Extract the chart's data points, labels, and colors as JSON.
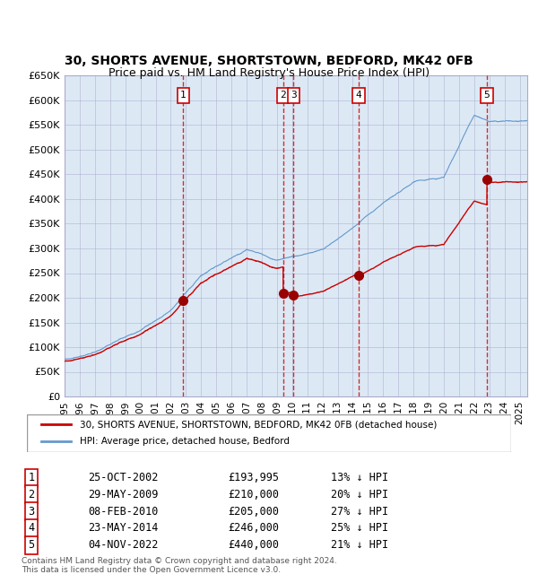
{
  "title": "30, SHORTS AVENUE, SHORTSTOWN, BEDFORD, MK42 0FB",
  "subtitle": "Price paid vs. HM Land Registry's House Price Index (HPI)",
  "ylabel_ticks": [
    "£0",
    "£50K",
    "£100K",
    "£150K",
    "£200K",
    "£250K",
    "£300K",
    "£350K",
    "£400K",
    "£450K",
    "£500K",
    "£550K",
    "£600K",
    "£650K"
  ],
  "ytick_values": [
    0,
    50000,
    100000,
    150000,
    200000,
    250000,
    300000,
    350000,
    400000,
    450000,
    500000,
    550000,
    600000,
    650000
  ],
  "ylim": [
    0,
    650000
  ],
  "xlim_start": 1995.0,
  "xlim_end": 2025.5,
  "background_color": "#dce9f5",
  "grid_color": "#aaaacc",
  "sale_points": [
    {
      "year": 2002.82,
      "value": 193995,
      "label": "1"
    },
    {
      "year": 2009.41,
      "value": 210000,
      "label": "2"
    },
    {
      "year": 2010.1,
      "value": 205000,
      "label": "3"
    },
    {
      "year": 2014.39,
      "value": 246000,
      "label": "4"
    },
    {
      "year": 2022.84,
      "value": 440000,
      "label": "5"
    }
  ],
  "sale_line_color": "#cc0000",
  "hpi_line_color": "#6699cc",
  "sale_dot_color": "#990000",
  "vline_color": "#cc0000",
  "legend_sale_label": "30, SHORTS AVENUE, SHORTSTOWN, BEDFORD, MK42 0FB (detached house)",
  "legend_hpi_label": "HPI: Average price, detached house, Bedford",
  "table_entries": [
    {
      "num": "1",
      "date": "25-OCT-2002",
      "price": "£193,995",
      "hpi": "13% ↓ HPI"
    },
    {
      "num": "2",
      "date": "29-MAY-2009",
      "price": "£210,000",
      "hpi": "20% ↓ HPI"
    },
    {
      "num": "3",
      "date": "08-FEB-2010",
      "price": "£205,000",
      "hpi": "27% ↓ HPI"
    },
    {
      "num": "4",
      "date": "23-MAY-2014",
      "price": "£246,000",
      "hpi": "25% ↓ HPI"
    },
    {
      "num": "5",
      "date": "04-NOV-2022",
      "price": "£440,000",
      "hpi": "21% ↓ HPI"
    }
  ],
  "footer_text": "Contains HM Land Registry data © Crown copyright and database right 2024.\nThis data is licensed under the Open Government Licence v3.0.",
  "title_fontsize": 10,
  "subtitle_fontsize": 9
}
